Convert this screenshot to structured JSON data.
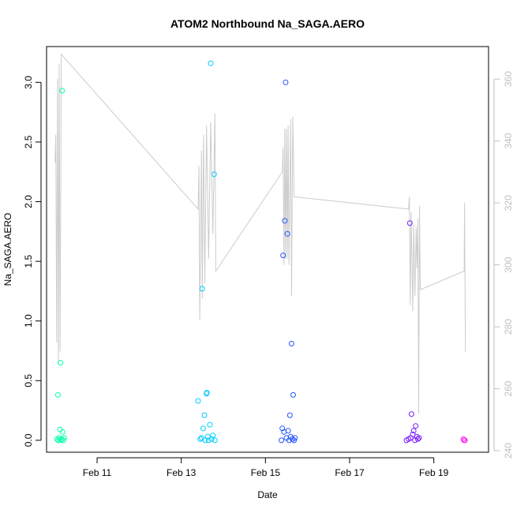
{
  "chart_data": {
    "type": "scatter",
    "title": "ATOM2 Northbound Na_SAGA.AERO",
    "xlabel": "Date",
    "ylabel": "Na_SAGA.AERO",
    "x_ticks": [
      "Feb 11",
      "Feb 13",
      "Feb 15",
      "Feb 17",
      "Feb 19"
    ],
    "x_tick_days": [
      11,
      13,
      15,
      17,
      19
    ],
    "xlim_days": [
      9.8,
      20.3
    ],
    "ylim": [
      -0.1,
      3.3
    ],
    "y_ticks": [
      "0.0",
      "0.5",
      "1.0",
      "1.5",
      "2.0",
      "2.5",
      "3.0"
    ],
    "y_tick_values": [
      0.0,
      0.5,
      1.0,
      1.5,
      2.0,
      2.5,
      3.0
    ],
    "y2_ticks": [
      "240",
      "260",
      "280",
      "300",
      "320",
      "340",
      "360"
    ],
    "y2_tick_values": [
      240,
      260,
      280,
      300,
      320,
      340,
      360
    ],
    "y2lim": [
      239.5,
      370.5
    ],
    "points": [
      {
        "x": 10.05,
        "y": 0.01,
        "color": "#00ffaa"
      },
      {
        "x": 10.07,
        "y": 0.38,
        "color": "#00ffaa"
      },
      {
        "x": 10.08,
        "y": 0.0,
        "color": "#00ffaa"
      },
      {
        "x": 10.1,
        "y": 0.02,
        "color": "#00ffaa"
      },
      {
        "x": 10.12,
        "y": 0.09,
        "color": "#00ffaa"
      },
      {
        "x": 10.13,
        "y": 0.65,
        "color": "#00ffaa"
      },
      {
        "x": 10.14,
        "y": 0.0,
        "color": "#00ffaa"
      },
      {
        "x": 10.16,
        "y": 0.01,
        "color": "#00ffaa"
      },
      {
        "x": 10.17,
        "y": 2.93,
        "color": "#00ffaa"
      },
      {
        "x": 10.18,
        "y": 0.07,
        "color": "#00ffaa"
      },
      {
        "x": 10.2,
        "y": 0.0,
        "color": "#00ffaa"
      },
      {
        "x": 10.22,
        "y": 0.02,
        "color": "#00ffaa"
      },
      {
        "x": 13.4,
        "y": 0.33,
        "color": "#00ccff"
      },
      {
        "x": 13.45,
        "y": 0.01,
        "color": "#00ccff"
      },
      {
        "x": 13.48,
        "y": 0.02,
        "color": "#00ccff"
      },
      {
        "x": 13.5,
        "y": 1.27,
        "color": "#00ccff"
      },
      {
        "x": 13.52,
        "y": 0.1,
        "color": "#00ccff"
      },
      {
        "x": 13.55,
        "y": 0.21,
        "color": "#00ccff"
      },
      {
        "x": 13.57,
        "y": 0.0,
        "color": "#00ccff"
      },
      {
        "x": 13.6,
        "y": 0.39,
        "color": "#00ccff"
      },
      {
        "x": 13.61,
        "y": 0.4,
        "color": "#00ccff"
      },
      {
        "x": 13.63,
        "y": 0.03,
        "color": "#00ccff"
      },
      {
        "x": 13.65,
        "y": 0.0,
        "color": "#00ccff"
      },
      {
        "x": 13.68,
        "y": 0.13,
        "color": "#00ccff"
      },
      {
        "x": 13.7,
        "y": 3.16,
        "color": "#00ccff"
      },
      {
        "x": 13.72,
        "y": 0.01,
        "color": "#00ccff"
      },
      {
        "x": 13.75,
        "y": 0.04,
        "color": "#00ccff"
      },
      {
        "x": 13.78,
        "y": 2.23,
        "color": "#00ccff"
      },
      {
        "x": 13.8,
        "y": 0.0,
        "color": "#00ccff"
      },
      {
        "x": 15.38,
        "y": 0.0,
        "color": "#2255ff"
      },
      {
        "x": 15.4,
        "y": 0.1,
        "color": "#2255ff"
      },
      {
        "x": 15.42,
        "y": 1.55,
        "color": "#2255ff"
      },
      {
        "x": 15.44,
        "y": 0.07,
        "color": "#2255ff"
      },
      {
        "x": 15.46,
        "y": 1.84,
        "color": "#2255ff"
      },
      {
        "x": 15.48,
        "y": 3.0,
        "color": "#2255ff"
      },
      {
        "x": 15.5,
        "y": 0.02,
        "color": "#2255ff"
      },
      {
        "x": 15.52,
        "y": 1.73,
        "color": "#2255ff"
      },
      {
        "x": 15.54,
        "y": 0.08,
        "color": "#2255ff"
      },
      {
        "x": 15.56,
        "y": 0.0,
        "color": "#2255ff"
      },
      {
        "x": 15.58,
        "y": 0.21,
        "color": "#2255ff"
      },
      {
        "x": 15.6,
        "y": 0.03,
        "color": "#2255ff"
      },
      {
        "x": 15.62,
        "y": 0.81,
        "color": "#2255ff"
      },
      {
        "x": 15.64,
        "y": 0.01,
        "color": "#2255ff"
      },
      {
        "x": 15.66,
        "y": 0.38,
        "color": "#2255ff"
      },
      {
        "x": 15.68,
        "y": 0.0,
        "color": "#2255ff"
      },
      {
        "x": 15.7,
        "y": 0.02,
        "color": "#2255ff"
      },
      {
        "x": 18.35,
        "y": 0.0,
        "color": "#7a1cff"
      },
      {
        "x": 18.4,
        "y": 0.01,
        "color": "#7a1cff"
      },
      {
        "x": 18.43,
        "y": 1.82,
        "color": "#7a1cff"
      },
      {
        "x": 18.45,
        "y": 0.02,
        "color": "#7a1cff"
      },
      {
        "x": 18.47,
        "y": 0.22,
        "color": "#7a1cff"
      },
      {
        "x": 18.5,
        "y": 0.05,
        "color": "#7a1cff"
      },
      {
        "x": 18.52,
        "y": 0.08,
        "color": "#7a1cff"
      },
      {
        "x": 18.55,
        "y": 0.0,
        "color": "#7a1cff"
      },
      {
        "x": 18.57,
        "y": 0.12,
        "color": "#7a1cff"
      },
      {
        "x": 18.6,
        "y": 0.03,
        "color": "#7a1cff"
      },
      {
        "x": 18.62,
        "y": 0.01,
        "color": "#7a1cff"
      },
      {
        "x": 18.65,
        "y": 0.02,
        "color": "#7a1cff"
      },
      {
        "x": 19.7,
        "y": 0.01,
        "color": "#ff22ee"
      },
      {
        "x": 19.72,
        "y": 0.0,
        "color": "#ff22ee"
      },
      {
        "x": 19.74,
        "y": 0.0,
        "color": "#ff22ee"
      }
    ],
    "secondary_line": {
      "color": "#cccccc",
      "points": [
        [
          10.0,
          333
        ],
        [
          10.02,
          342
        ],
        [
          10.04,
          275
        ],
        [
          10.06,
          360
        ],
        [
          10.08,
          268
        ],
        [
          10.1,
          365
        ],
        [
          10.12,
          272
        ],
        [
          10.15,
          368
        ],
        [
          13.4,
          318
        ],
        [
          13.42,
          332
        ],
        [
          13.44,
          282
        ],
        [
          13.48,
          337
        ],
        [
          13.5,
          289
        ],
        [
          13.53,
          342
        ],
        [
          13.56,
          294
        ],
        [
          13.6,
          345
        ],
        [
          13.65,
          302
        ],
        [
          13.7,
          346
        ],
        [
          13.75,
          310
        ],
        [
          13.8,
          349
        ],
        [
          13.82,
          298
        ],
        [
          15.4,
          330
        ],
        [
          15.42,
          338
        ],
        [
          15.44,
          300
        ],
        [
          15.46,
          344
        ],
        [
          15.48,
          302
        ],
        [
          15.5,
          344
        ],
        [
          15.52,
          302
        ],
        [
          15.54,
          345
        ],
        [
          15.56,
          300
        ],
        [
          15.6,
          347
        ],
        [
          15.62,
          290
        ],
        [
          15.65,
          348
        ],
        [
          15.68,
          322
        ],
        [
          18.4,
          318
        ],
        [
          18.42,
          322
        ],
        [
          18.44,
          287
        ],
        [
          18.46,
          317
        ],
        [
          18.5,
          285
        ],
        [
          18.52,
          313
        ],
        [
          18.55,
          290
        ],
        [
          18.58,
          312
        ],
        [
          18.6,
          299
        ],
        [
          18.62,
          315
        ],
        [
          18.64,
          252
        ],
        [
          18.66,
          319
        ],
        [
          18.68,
          292
        ],
        [
          19.72,
          298
        ],
        [
          19.73,
          320
        ],
        [
          19.75,
          272
        ]
      ]
    }
  }
}
